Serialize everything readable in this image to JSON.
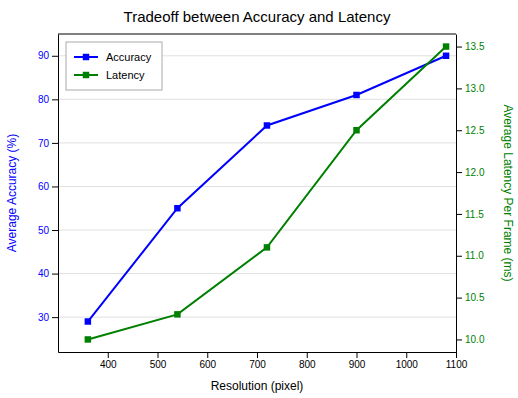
{
  "chart_data": {
    "type": "line",
    "title": "Tradeoff between Accuracy and Latency",
    "xlabel": "Resolution (pixel)",
    "ylabel": "Average Accuracy (%)",
    "y2label": "Average Latency Per Frame (ms)",
    "x": [
      360,
      540,
      720,
      900,
      1080
    ],
    "series": [
      {
        "name": "Accuracy",
        "color": "blue",
        "marker": "square",
        "values": [
          29,
          55,
          74,
          81,
          90
        ]
      },
      {
        "name": "Latency",
        "color": "green",
        "marker": "square",
        "axis": "y2",
        "values": [
          10.0,
          10.3,
          11.1,
          12.5,
          13.5
        ]
      }
    ],
    "xlim": [
      300,
      1100
    ],
    "xticks": [
      400,
      500,
      600,
      700,
      800,
      900,
      1000,
      1100
    ],
    "ylim": [
      22,
      95
    ],
    "yticks": [
      30,
      40,
      50,
      60,
      70,
      80,
      90
    ],
    "y2lim": [
      9.85,
      13.65
    ],
    "y2ticks": [
      {
        "value": 10,
        "label": "10.0"
      },
      10.5,
      {
        "value": 11,
        "label": "11.0"
      },
      11.5,
      {
        "value": 12,
        "label": "12.0"
      },
      12.5,
      {
        "value": 13,
        "label": "13.0"
      },
      13.5
    ],
    "grid": true,
    "legend": "upper left"
  }
}
